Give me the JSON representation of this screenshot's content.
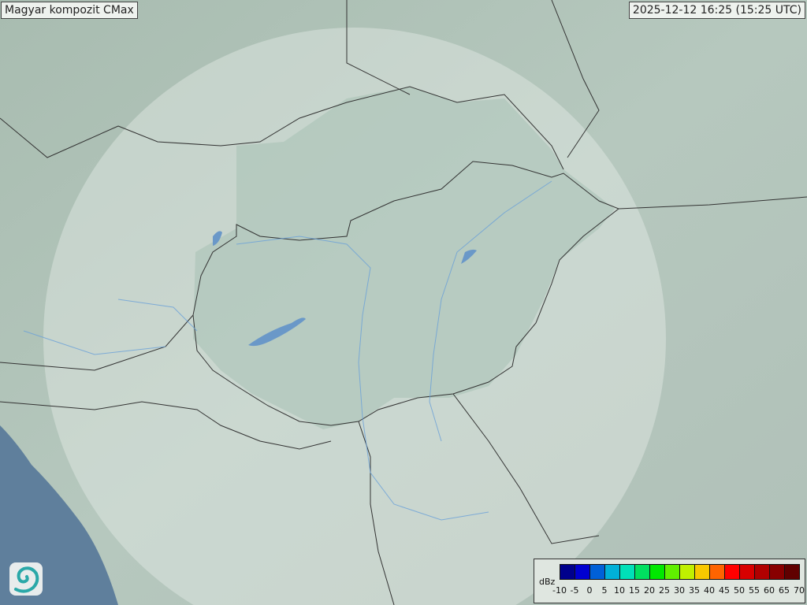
{
  "header": {
    "title": "Magyar kompozit  CMax",
    "timestamp": "2025-12-12 16:25 (15:25 UTC)"
  },
  "legend": {
    "unit": "dBz",
    "colors": [
      "#00008c",
      "#0000d0",
      "#0060d8",
      "#00b0d8",
      "#00e0b8",
      "#00e060",
      "#00e800",
      "#60f000",
      "#c0f000",
      "#f8c800",
      "#ff6400",
      "#ff0000",
      "#d80000",
      "#b00000",
      "#880000",
      "#600000"
    ],
    "ticks": [
      "-10",
      "-5",
      "0",
      "5",
      "10",
      "15",
      "20",
      "25",
      "30",
      "35",
      "40",
      "45",
      "50",
      "55",
      "60",
      "65",
      "70"
    ]
  },
  "map": {
    "land_color": "#b4c6bc",
    "sea_color": "#5f7f9c",
    "radar_coverage_color": "#d8e4dc",
    "border_color": "#333333",
    "river_color": "#6aa0d8"
  },
  "logo": {
    "icon": "swirl-logo-icon"
  }
}
